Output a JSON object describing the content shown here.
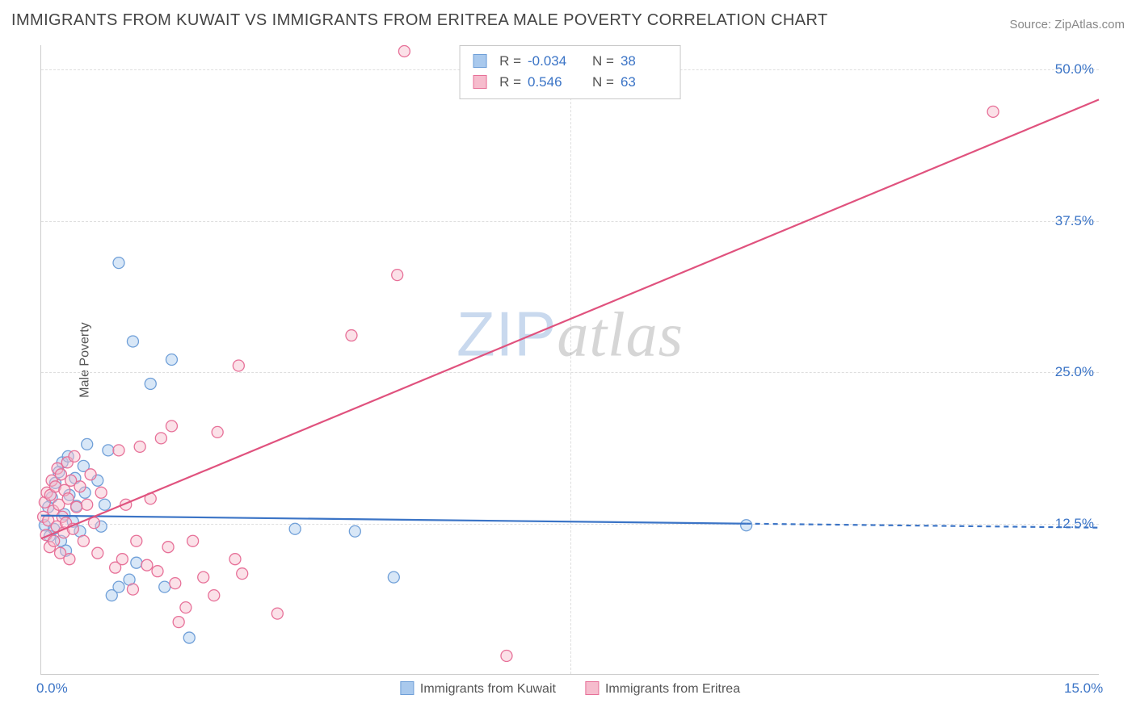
{
  "title": "IMMIGRANTS FROM KUWAIT VS IMMIGRANTS FROM ERITREA MALE POVERTY CORRELATION CHART",
  "source_label": "Source: ZipAtlas.com",
  "ylabel": "Male Poverty",
  "watermark": {
    "part1": "ZIP",
    "part2": "atlas"
  },
  "chart": {
    "type": "scatter",
    "xlim": [
      0,
      15
    ],
    "ylim": [
      0,
      52
    ],
    "x_ticks": [
      {
        "value": 0,
        "label": "0.0%"
      },
      {
        "value": 15,
        "label": "15.0%"
      }
    ],
    "y_ticks": [
      {
        "value": 12.5,
        "label": "12.5%"
      },
      {
        "value": 25.0,
        "label": "25.0%"
      },
      {
        "value": 37.5,
        "label": "37.5%"
      },
      {
        "value": 50.0,
        "label": "50.0%"
      }
    ],
    "x_gridlines": [
      7.5
    ],
    "marker_radius": 7,
    "marker_stroke_width": 1.3,
    "marker_fill_opacity": 0.45,
    "line_width": 2.2,
    "dashed_pattern": "6,5",
    "background_color": "#ffffff",
    "grid_color": "#dedede",
    "axis_color": "#cccccc",
    "tick_color": "#3b74c6",
    "series": [
      {
        "id": "kuwait",
        "label": "Immigrants from Kuwait",
        "color_fill": "#a9c9ed",
        "color_stroke": "#6f9fd8",
        "line_color": "#3b74c6",
        "R": "-0.034",
        "N": "38",
        "trend": {
          "y_at_x0": 13.1,
          "y_at_x15": 12.1,
          "solid_until_x": 10.0
        },
        "points": [
          [
            0.05,
            12.3
          ],
          [
            0.1,
            13.8
          ],
          [
            0.12,
            11.4
          ],
          [
            0.15,
            14.6
          ],
          [
            0.18,
            12.0
          ],
          [
            0.2,
            15.8
          ],
          [
            0.25,
            16.7
          ],
          [
            0.28,
            11.0
          ],
          [
            0.3,
            17.5
          ],
          [
            0.33,
            13.2
          ],
          [
            0.35,
            10.2
          ],
          [
            0.38,
            18.0
          ],
          [
            0.4,
            14.8
          ],
          [
            0.45,
            12.6
          ],
          [
            0.48,
            16.2
          ],
          [
            0.5,
            13.9
          ],
          [
            0.55,
            11.8
          ],
          [
            0.6,
            17.2
          ],
          [
            0.62,
            15.0
          ],
          [
            0.65,
            19.0
          ],
          [
            0.8,
            16.0
          ],
          [
            0.85,
            12.2
          ],
          [
            0.9,
            14.0
          ],
          [
            0.95,
            18.5
          ],
          [
            1.0,
            6.5
          ],
          [
            1.1,
            7.2
          ],
          [
            1.1,
            34.0
          ],
          [
            1.25,
            7.8
          ],
          [
            1.3,
            27.5
          ],
          [
            1.35,
            9.2
          ],
          [
            1.55,
            24.0
          ],
          [
            1.75,
            7.2
          ],
          [
            1.85,
            26.0
          ],
          [
            2.1,
            3.0
          ],
          [
            3.6,
            12.0
          ],
          [
            4.45,
            11.8
          ],
          [
            5.0,
            8.0
          ],
          [
            10.0,
            12.3
          ]
        ]
      },
      {
        "id": "eritrea",
        "label": "Immigrants from Eritrea",
        "color_fill": "#f6bccd",
        "color_stroke": "#e77098",
        "line_color": "#e0527e",
        "R": "0.546",
        "N": "63",
        "trend": {
          "y_at_x0": 11.2,
          "y_at_x15": 47.5,
          "solid_until_x": 15.0
        },
        "points": [
          [
            0.03,
            13.0
          ],
          [
            0.05,
            14.2
          ],
          [
            0.07,
            11.5
          ],
          [
            0.08,
            15.0
          ],
          [
            0.1,
            12.7
          ],
          [
            0.12,
            10.5
          ],
          [
            0.13,
            14.8
          ],
          [
            0.15,
            16.0
          ],
          [
            0.17,
            13.5
          ],
          [
            0.18,
            11.0
          ],
          [
            0.2,
            15.5
          ],
          [
            0.22,
            12.2
          ],
          [
            0.23,
            17.0
          ],
          [
            0.25,
            14.0
          ],
          [
            0.27,
            10.0
          ],
          [
            0.28,
            16.5
          ],
          [
            0.3,
            13.0
          ],
          [
            0.32,
            11.7
          ],
          [
            0.33,
            15.2
          ],
          [
            0.35,
            12.5
          ],
          [
            0.37,
            17.5
          ],
          [
            0.38,
            14.5
          ],
          [
            0.4,
            9.5
          ],
          [
            0.42,
            16.0
          ],
          [
            0.45,
            12.0
          ],
          [
            0.47,
            18.0
          ],
          [
            0.5,
            13.8
          ],
          [
            0.55,
            15.5
          ],
          [
            0.6,
            11.0
          ],
          [
            0.65,
            14.0
          ],
          [
            0.7,
            16.5
          ],
          [
            0.75,
            12.5
          ],
          [
            0.8,
            10.0
          ],
          [
            0.85,
            15.0
          ],
          [
            1.05,
            8.8
          ],
          [
            1.1,
            18.5
          ],
          [
            1.15,
            9.5
          ],
          [
            1.2,
            14.0
          ],
          [
            1.3,
            7.0
          ],
          [
            1.35,
            11.0
          ],
          [
            1.4,
            18.8
          ],
          [
            1.5,
            9.0
          ],
          [
            1.55,
            14.5
          ],
          [
            1.65,
            8.5
          ],
          [
            1.7,
            19.5
          ],
          [
            1.8,
            10.5
          ],
          [
            1.85,
            20.5
          ],
          [
            1.9,
            7.5
          ],
          [
            1.95,
            4.3
          ],
          [
            2.05,
            5.5
          ],
          [
            2.15,
            11.0
          ],
          [
            2.3,
            8.0
          ],
          [
            2.45,
            6.5
          ],
          [
            2.5,
            20.0
          ],
          [
            2.75,
            9.5
          ],
          [
            2.8,
            25.5
          ],
          [
            2.85,
            8.3
          ],
          [
            3.35,
            5.0
          ],
          [
            4.4,
            28.0
          ],
          [
            5.05,
            33.0
          ],
          [
            5.15,
            51.5
          ],
          [
            6.6,
            1.5
          ],
          [
            13.5,
            46.5
          ]
        ]
      }
    ]
  },
  "legend_box": {
    "rows": [
      {
        "series": "kuwait",
        "R_label": "R =",
        "N_label": "N ="
      },
      {
        "series": "eritrea",
        "R_label": "R =",
        "N_label": "N ="
      }
    ]
  }
}
